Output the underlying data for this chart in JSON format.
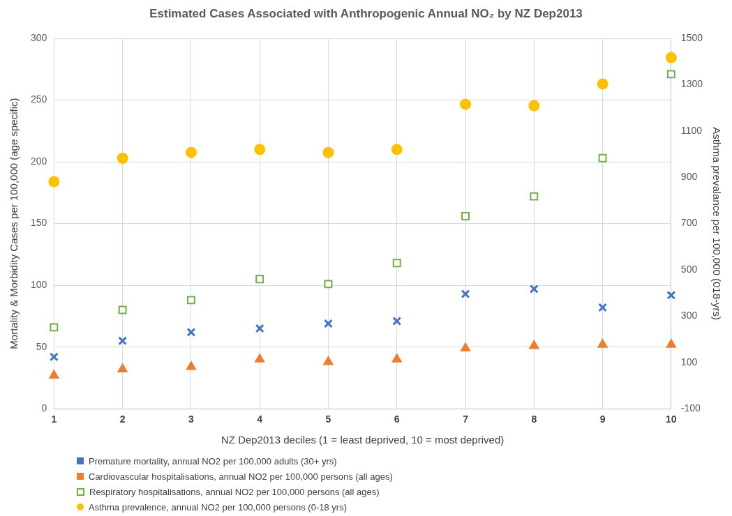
{
  "chart_data": {
    "type": "scatter",
    "title": "Estimated Cases Associated with  Anthropogenic Annual NO₂ by NZ Dep2013",
    "xlabel": "NZ Dep2013 deciles (1 = least deprived, 10 = most deprived)",
    "ylabel": "Mortality & Morbidity Cases per 100,000 (age specific)",
    "y2label": "Asthma prevalance per 100,000 (018-yrs)",
    "categories": [
      "1",
      "2",
      "3",
      "4",
      "5",
      "6",
      "7",
      "8",
      "9",
      "10"
    ],
    "series": [
      {
        "name": "Premature mortality, annual NO2 per 100,000 adults (30+ yrs)",
        "color": "#4472c4",
        "marker": "cross",
        "values": [
          42,
          55,
          62,
          65,
          69,
          71,
          93,
          97,
          82,
          92
        ]
      },
      {
        "name": "Cardiovascular hospitalisations, annual NO2 per 100,000 persons (all ages)",
        "color": "#ed7d31",
        "marker": "triangle",
        "values": [
          27,
          32,
          34,
          40,
          38,
          40,
          49,
          51,
          52,
          52
        ]
      },
      {
        "name": "Respiratory hospitalisations, annual NO2 per 100,000 persons (all ages)",
        "color": "#70ad47",
        "marker": "square",
        "values": [
          66,
          80,
          88,
          105,
          101,
          118,
          156,
          172,
          203,
          271
        ]
      },
      {
        "name": "Asthma prevalence, annual NO2 per 100,000 persons (0-18 yrs)",
        "color": "#ffc000",
        "marker": "circle",
        "axis": "y2",
        "values": [
          881,
          982,
          1007,
          1020,
          1007,
          1020,
          1215,
          1209,
          1303,
          1417
        ]
      }
    ],
    "ylim": [
      0,
      300
    ],
    "yticks": [
      0,
      50,
      100,
      150,
      200,
      250,
      300
    ],
    "y2lim": [
      -100,
      1500
    ],
    "y2ticks": [
      -100,
      100,
      300,
      500,
      700,
      900,
      1100,
      1300,
      1500
    ],
    "grid": true,
    "legend": "bottom"
  }
}
